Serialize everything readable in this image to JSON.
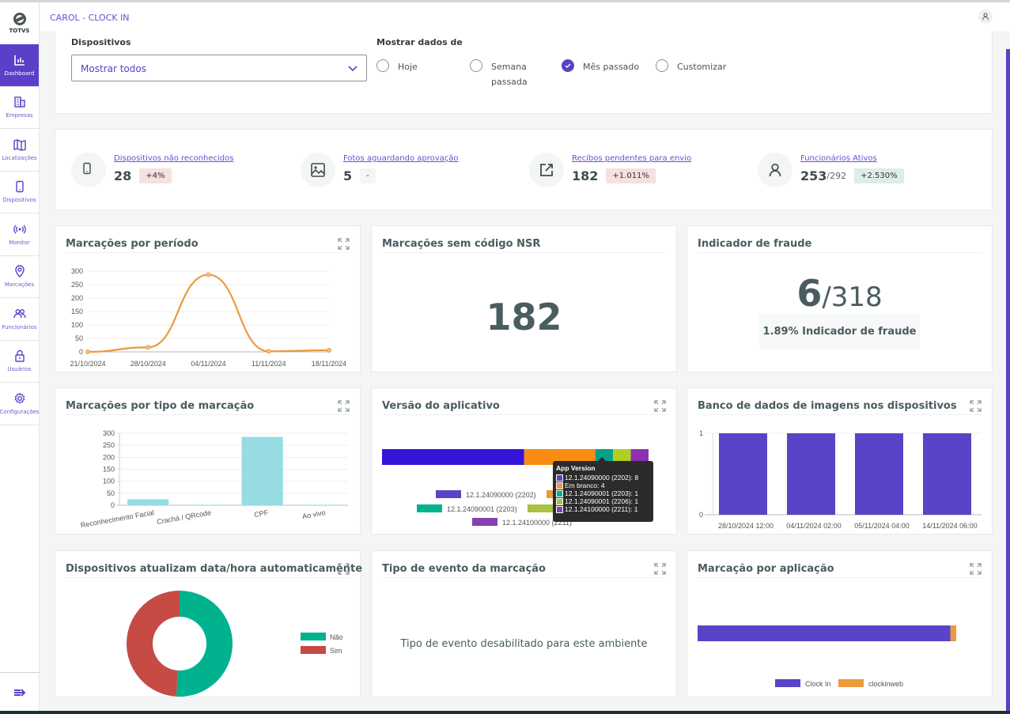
{
  "app": {
    "logo_text": "TOTVS",
    "title": "CAROL - CLOCK IN",
    "avatar_icon": "user-icon"
  },
  "sidebar": {
    "items": [
      {
        "label": "Dashboard",
        "icon": "bar-chart-icon",
        "active": true
      },
      {
        "label": "Empresas",
        "icon": "building-icon",
        "active": false
      },
      {
        "label": "Localizações",
        "icon": "map-icon",
        "active": false
      },
      {
        "label": "Dispositivos",
        "icon": "phone-icon",
        "active": false
      },
      {
        "label": "Monitor",
        "icon": "signal-icon",
        "active": false
      },
      {
        "label": "Marcações",
        "icon": "location-pin-icon",
        "active": false
      },
      {
        "label": "Funcionários",
        "icon": "users-icon",
        "active": false
      },
      {
        "label": "Usuários",
        "icon": "lock-icon",
        "active": false
      },
      {
        "label": "Configurações",
        "icon": "gear-icon",
        "active": false
      }
    ],
    "collapse_icon": "collapse-arrow-icon"
  },
  "filters": {
    "devices_label": "Dispositivos",
    "devices_value": "Mostrar todos",
    "period_label": "Mostrar dados de",
    "period_options": [
      {
        "label": "Hoje",
        "selected": false
      },
      {
        "label": "Semana passada",
        "selected": false
      },
      {
        "label": "Mês passado",
        "selected": true
      },
      {
        "label": "Customizar",
        "selected": false
      }
    ]
  },
  "kpis": [
    {
      "label": "Dispositivos não reconhecidos",
      "value": "28",
      "total": "",
      "badge": "+4%",
      "badge_type": "red",
      "icon": "phone-icon"
    },
    {
      "label": "Fotos aguardando aprovação",
      "value": "5",
      "total": "",
      "badge": "-",
      "badge_type": "grey",
      "icon": "image-icon"
    },
    {
      "label": "Recibos pendentes para envio",
      "value": "182",
      "total": "",
      "badge": "+1.011%",
      "badge_type": "red",
      "icon": "external-link-icon"
    },
    {
      "label": "Funcionários Ativos",
      "value": "253",
      "total": "/292",
      "badge": "+2.530%",
      "badge_type": "green",
      "icon": "user-icon"
    }
  ],
  "widgets": {
    "period": {
      "title": "Marcações por período"
    },
    "nsr": {
      "title": "Marcações sem código NSR",
      "value": "182"
    },
    "fraud": {
      "title": "Indicador de fraude",
      "value": "6",
      "total": "/318",
      "caption": "1.89% Indicador de fraude"
    },
    "type": {
      "title": "Marcações por tipo de marcação"
    },
    "version": {
      "title": "Versão do aplicativo"
    },
    "imagedb": {
      "title": "Banco de dados de imagens nos dispositivos"
    },
    "autotime": {
      "title": "Dispositivos atualizam data/hora automaticamente"
    },
    "event": {
      "title": "Tipo de evento da marcação",
      "message": "Tipo de evento desabilitado para este ambiente"
    },
    "byapp": {
      "title": "Marcação por aplicação"
    }
  },
  "colors": {
    "accent": "#5b3fc8",
    "line": "#eb9a3c",
    "bar_teal": "#97dce3",
    "bar_purple": "#5a43c6",
    "green": "#00b28e",
    "red": "#c64b44"
  },
  "chart_data": [
    {
      "id": "period",
      "type": "line",
      "title": "Marcações por período",
      "x": [
        "21/10/2024",
        "28/10/2024",
        "04/11/2024",
        "11/11/2024",
        "18/11/2024"
      ],
      "values": [
        0,
        17,
        287,
        2,
        6
      ],
      "ylim": [
        0,
        300
      ],
      "yticks": [
        0,
        50,
        100,
        150,
        200,
        250,
        300
      ],
      "grid": true
    },
    {
      "id": "type",
      "type": "bar",
      "title": "Marcações por tipo de marcação",
      "categories": [
        "Reconhecimento Facial",
        "Crachá / QRcode",
        "CPF",
        "Ao vivo"
      ],
      "values": [
        25,
        2,
        285,
        2
      ],
      "ylim": [
        0,
        300
      ],
      "yticks": [
        0,
        50,
        100,
        150,
        200,
        250,
        300
      ],
      "grid": true
    },
    {
      "id": "version",
      "type": "bar",
      "orientation": "horizontal-stacked",
      "title": "Versão do aplicativo",
      "tooltip_title": "App Version",
      "series": [
        {
          "name": "12.1.24090000 (2202)",
          "value": 8,
          "color": "#3416d9",
          "legend_color": "#5a43c6"
        },
        {
          "name": "Em branco",
          "value": 4,
          "color": "#fa8c14",
          "legend_color": "#eb9a3c"
        },
        {
          "name": "12.1.24090001 (2203)",
          "value": 1,
          "color": "#03a188",
          "legend_color": "#00b28e"
        },
        {
          "name": "12.1.24090001 (2206)",
          "value": 1,
          "color": "#b1cf22",
          "legend_color": "#aac144"
        },
        {
          "name": "12.1.24100000 (2211)",
          "value": 1,
          "color": "#8e2fb5",
          "legend_color": "#8642b0"
        }
      ]
    },
    {
      "id": "imagedb",
      "type": "bar",
      "title": "Banco de dados de imagens nos dispositivos",
      "categories": [
        "28/10/2024 12:00",
        "04/11/2024 02:00",
        "05/11/2024 04:00",
        "14/11/2024 06:00"
      ],
      "values": [
        1,
        1,
        1,
        1
      ],
      "ylim": [
        0,
        1
      ],
      "yticks": [
        0,
        1
      ],
      "grid": true
    },
    {
      "id": "autotime",
      "type": "pie",
      "donut": true,
      "title": "Dispositivos atualizam data/hora automaticamente",
      "slices": [
        {
          "label": "Não",
          "value": 51,
          "color": "#00b28e"
        },
        {
          "label": "Sim",
          "value": 49,
          "color": "#c64b44"
        }
      ],
      "legend": "right"
    },
    {
      "id": "byapp",
      "type": "bar",
      "orientation": "horizontal-stacked",
      "title": "Marcação por aplicação",
      "series": [
        {
          "name": "Clock In",
          "value": 97.8,
          "color": "#5a43c6"
        },
        {
          "name": "clockinweb",
          "value": 2.2,
          "color": "#eb9a3c"
        }
      ],
      "legend": "bottom"
    }
  ]
}
